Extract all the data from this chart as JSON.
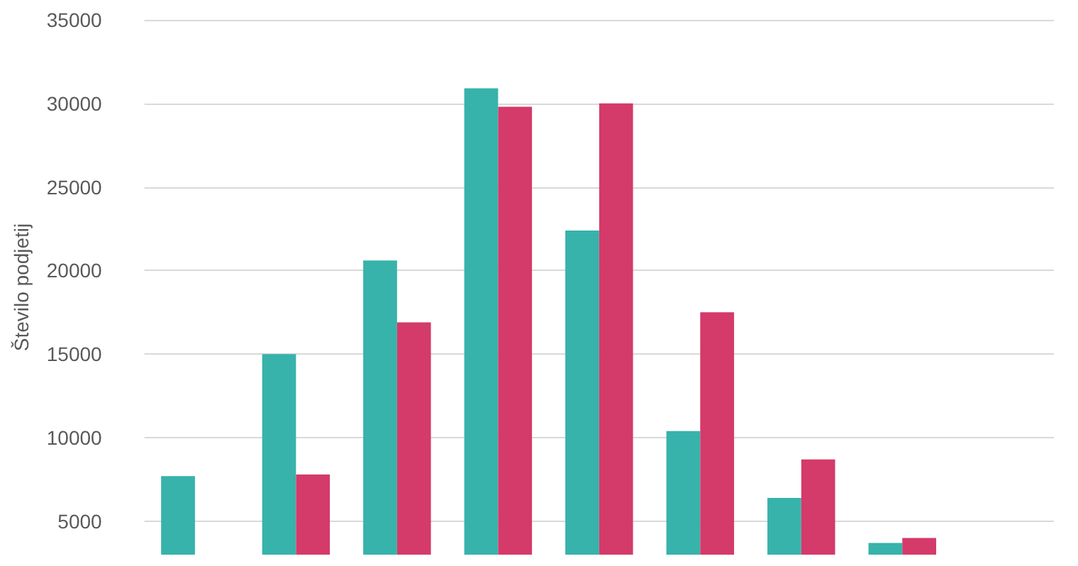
{
  "chart_data": {
    "type": "bar",
    "ylabel": "Število podjetij",
    "categories": [
      null,
      null,
      null,
      null,
      null,
      null,
      null,
      null,
      null
    ],
    "series": [
      {
        "color": "#37b3ab",
        "values": [
          7700,
          15000,
          20600,
          30900,
          22400,
          10400,
          6400,
          3700,
          null
        ]
      },
      {
        "color": "#d43a6a",
        "values": [
          null,
          7800,
          16900,
          29800,
          30000,
          17500,
          8700,
          4000,
          null
        ]
      }
    ],
    "ylim": [
      3000,
      35000
    ],
    "yticks": [
      5000,
      10000,
      15000,
      20000,
      25000,
      30000,
      35000
    ],
    "grid": "y"
  }
}
